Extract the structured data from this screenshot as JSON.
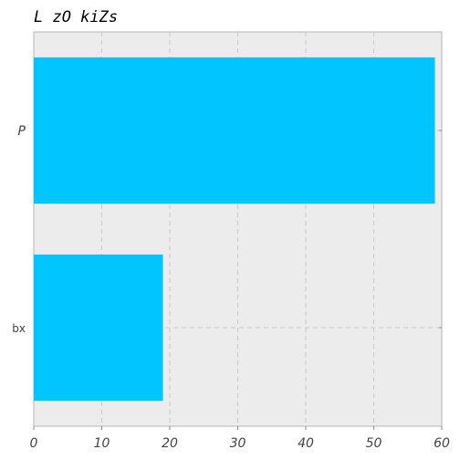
{
  "chart_data": {
    "type": "bar",
    "orientation": "horizontal",
    "title": "L zO kiZs",
    "categories": [
      "P",
      "bx"
    ],
    "values": [
      59,
      19
    ],
    "xlim": [
      0,
      60
    ],
    "xticks": [
      0,
      10,
      20,
      30,
      40,
      50,
      60
    ],
    "xlabel": "",
    "ylabel": "",
    "grid": true,
    "bar_color": "#00c5ff",
    "plot_background": "#ebebeb"
  }
}
